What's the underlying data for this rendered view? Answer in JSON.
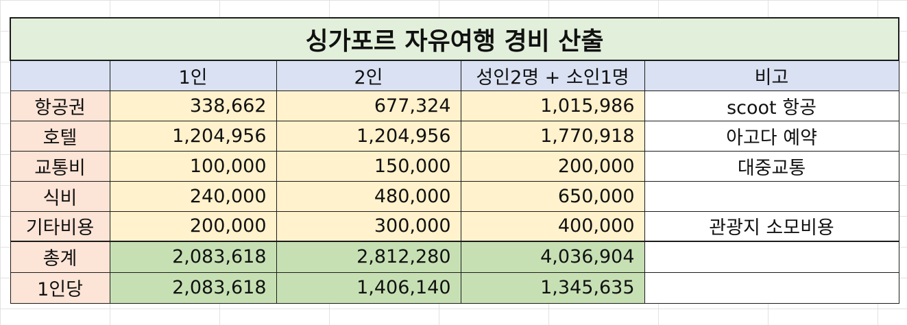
{
  "title": "싱가포르 자유여행 경비 산출",
  "headers": [
    "",
    "1인",
    "2인",
    "성인2명 + 소인1명",
    "비고"
  ],
  "rows": [
    {
      "label": "항공권",
      "p1": "338,662",
      "p2": "677,324",
      "family": "1,015,986",
      "note": "scoot 항공"
    },
    {
      "label": "호텔",
      "p1": "1,204,956",
      "p2": "1,204,956",
      "family": "1,770,918",
      "note": "아고다 예약"
    },
    {
      "label": "교통비",
      "p1": "100,000",
      "p2": "150,000",
      "family": "200,000",
      "note": "대중교통"
    },
    {
      "label": "식비",
      "p1": "240,000",
      "p2": "480,000",
      "family": "650,000",
      "note": ""
    },
    {
      "label": "기타비용",
      "p1": "200,000",
      "p2": "300,000",
      "family": "400,000",
      "note": "관광지 소모비용"
    }
  ],
  "total": {
    "label": "총계",
    "p1": "2,083,618",
    "p2": "2,812,280",
    "family": "4,036,904",
    "note": ""
  },
  "per_person": {
    "label": "1인당",
    "p1": "2,083,618",
    "p2": "1,406,140",
    "family": "1,345,635",
    "note": ""
  },
  "colors": {
    "title_bg": "#e2efda",
    "header_bg": "#d9e1f2",
    "label_bg": "#fce4d6",
    "value_bg": "#fff2cc",
    "total_bg": "#c6e0b4",
    "per_person_text": "#ff0000"
  }
}
